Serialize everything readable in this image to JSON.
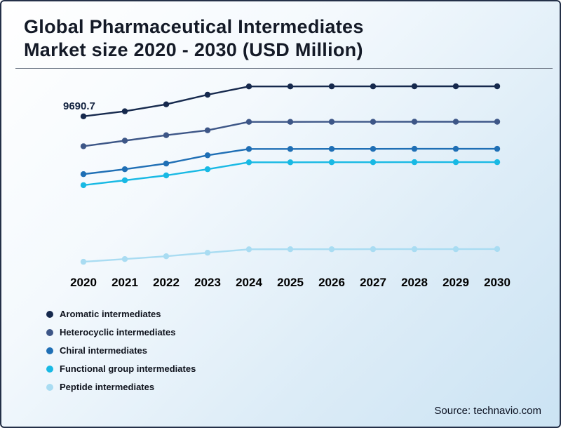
{
  "header": {
    "title_line1": "Global Pharmaceutical Intermediates",
    "title_line2": "Market size 2020 - 2030 (USD Million)"
  },
  "footer": {
    "source": "Source: technavio.com"
  },
  "chart_data": {
    "type": "line",
    "title": "Global Pharmaceutical Intermediates Market size 2020 - 2030 (USD Million)",
    "unit": "USD Million",
    "x": [
      "2020",
      "2021",
      "2022",
      "2023",
      "2024",
      "2025",
      "2026",
      "2027",
      "2028",
      "2029",
      "2030"
    ],
    "ylim": [
      0,
      11800
    ],
    "grid": false,
    "legend_position": "bottom-left",
    "annotation": {
      "text": "9690.7",
      "series": "Aromatic intermediates",
      "x": "2020"
    },
    "series": [
      {
        "name": "Aromatic intermediates",
        "color": "#16294d",
        "values": [
          9690.7,
          10000,
          10430,
          11020,
          11530,
          11530,
          11535,
          11535,
          11540,
          11540,
          11540
        ]
      },
      {
        "name": "Heterocyclic intermediates",
        "color": "#3d5687",
        "values": [
          7850,
          8190,
          8530,
          8830,
          9350,
          9350,
          9355,
          9355,
          9360,
          9360,
          9360
        ]
      },
      {
        "name": "Chiral intermediates",
        "color": "#1f6fb5",
        "values": [
          6130,
          6430,
          6780,
          7290,
          7680,
          7680,
          7685,
          7685,
          7690,
          7690,
          7690
        ]
      },
      {
        "name": "Functional group intermediates",
        "color": "#18b9e4",
        "values": [
          5450,
          5750,
          6050,
          6430,
          6860,
          6860,
          6865,
          6865,
          6870,
          6870,
          6870
        ]
      },
      {
        "name": "Peptide intermediates",
        "color": "#a9dcf2",
        "values": [
          730,
          900,
          1070,
          1290,
          1500,
          1505,
          1505,
          1510,
          1510,
          1510,
          1515
        ]
      }
    ]
  }
}
